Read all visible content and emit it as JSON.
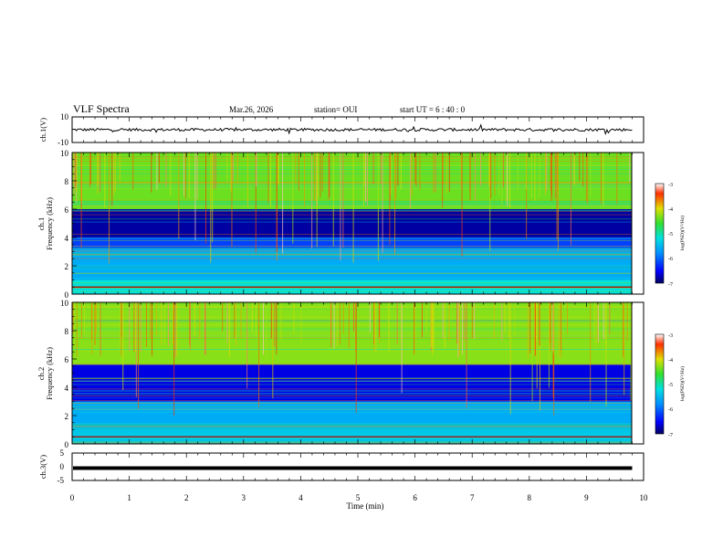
{
  "header": {
    "title": "VLF Spectra",
    "date": "Mar.26, 2026",
    "station": "station= OUI",
    "start": "start  UT  =   6 : 40 : 0"
  },
  "chart_data": [
    {
      "type": "line",
      "name": "ch1-waveform",
      "ylabel": "ch.1(V)",
      "ylim": [
        -10,
        10
      ],
      "y_tick_labels": [
        "10",
        "-10"
      ],
      "xlim": [
        0,
        10
      ],
      "baseline": 0
    },
    {
      "type": "heatmap",
      "name": "ch1-spectrogram",
      "ylabel": "ch.1\nFrequency  (kHz)",
      "ylabel_line1": "ch.1",
      "ylabel_line2": "Frequency  (kHz)",
      "ylim": [
        0,
        10
      ],
      "y_tick_labels": [
        "0",
        "2",
        "4",
        "6",
        "8",
        "10"
      ],
      "xlim": [
        0,
        10
      ],
      "colorbar": {
        "range": [
          -7,
          -3
        ],
        "tick_labels": [
          "-3",
          "-4",
          "-5",
          "-6",
          "-7"
        ],
        "label": "log(PSD)(V²/Hz)"
      },
      "bands_kHz": [
        {
          "from": 0,
          "to": 1,
          "level": -5.2
        },
        {
          "from": 1,
          "to": 3.2,
          "level": -5.6
        },
        {
          "from": 3.2,
          "to": 4,
          "level": -6.2
        },
        {
          "from": 4,
          "to": 6,
          "level": -6.8
        },
        {
          "from": 6,
          "to": 10,
          "level": -4.4
        }
      ]
    },
    {
      "type": "heatmap",
      "name": "ch2-spectrogram",
      "ylabel": "ch.2\nFrequency  (kHz)",
      "ylabel_line1": "ch.2",
      "ylabel_line2": "Frequency  (kHz)",
      "ylim": [
        0,
        10
      ],
      "y_tick_labels": [
        "0",
        "2",
        "4",
        "6",
        "8",
        "10"
      ],
      "xlim": [
        0,
        10
      ],
      "colorbar": {
        "range": [
          -7,
          -3
        ],
        "tick_labels": [
          "-3",
          "-4",
          "-5",
          "-6",
          "-7"
        ],
        "label": "log(PSD)(V²/Hz)"
      },
      "bands_kHz": [
        {
          "from": 0,
          "to": 1,
          "level": -5.4
        },
        {
          "from": 1,
          "to": 3,
          "level": -5.6
        },
        {
          "from": 3,
          "to": 5.6,
          "level": -6.6
        },
        {
          "from": 5.6,
          "to": 10,
          "level": -4.3
        }
      ]
    },
    {
      "type": "line",
      "name": "ch3-waveform",
      "ylabel": "ch.3(V)",
      "ylim": [
        -5,
        5
      ],
      "y_tick_labels": [
        "5",
        "0",
        "-5"
      ],
      "xlim": [
        0,
        10
      ],
      "baseline": -0.5
    }
  ],
  "x_axis": {
    "label": "Time  (min)",
    "range": [
      0,
      10
    ],
    "tick_labels": [
      "0",
      "1",
      "2",
      "3",
      "4",
      "5",
      "6",
      "7",
      "8",
      "9",
      "10"
    ]
  }
}
